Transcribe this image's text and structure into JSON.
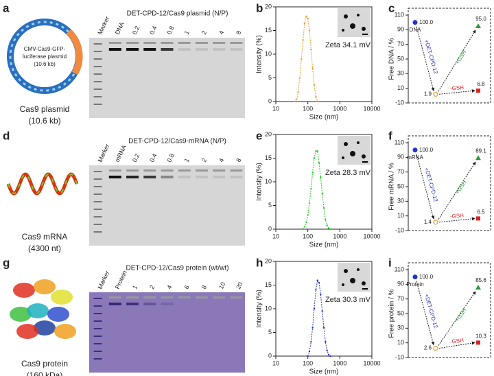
{
  "panel_labels": [
    "a",
    "b",
    "c",
    "d",
    "e",
    "f",
    "g",
    "h",
    "i"
  ],
  "schematics": [
    {
      "caption": "Cas9 plasmid",
      "detail": "(10.6 kb)",
      "inner_text": [
        "CMV-Cas9-GFP-",
        "luciferase plasmid",
        "(10.6 kb)"
      ]
    },
    {
      "caption": "Cas9 mRNA",
      "detail": "(4300 nt)"
    },
    {
      "caption": "Cas9 protein",
      "detail": "(160 kDa)"
    }
  ],
  "gels": [
    {
      "title": "DET-CPD-12/Cas9 plasmid (N/P)",
      "lanes": [
        "Marker",
        "DNA",
        "0.2",
        "0.4",
        "0.8",
        "1",
        "2",
        "4",
        "8"
      ]
    },
    {
      "title": "DET-CPD-12/Cas9-mRNA (N/P)",
      "lanes": [
        "Marker",
        "mRNA",
        "0.2",
        "0.4",
        "0.8",
        "1",
        "2",
        "4",
        "8"
      ]
    },
    {
      "title": "DET-CPD-12/Cas9 protein (wt/wt)",
      "lanes": [
        "Marker",
        "Protein",
        "1",
        "2",
        "4",
        "6",
        "8",
        "10",
        "20"
      ]
    }
  ],
  "chart_data": [
    {
      "type": "line",
      "annotation": "Zeta 34.1 mV",
      "xlabel": "Size (nm)",
      "ylabel": "Intensity (%)",
      "log_x": true,
      "xlim": [
        10,
        10000
      ],
      "xticks": [
        10,
        100,
        1000,
        10000
      ],
      "ylim": [
        0,
        20
      ],
      "yticks": [
        0,
        5,
        10,
        15,
        20
      ],
      "color": "#f39a2b",
      "x": [
        40,
        45,
        50,
        56,
        63,
        71,
        79,
        89,
        100,
        112,
        126,
        141,
        158,
        178,
        200
      ],
      "values": [
        0,
        0.5,
        2,
        5,
        9,
        13,
        16.5,
        18,
        17.5,
        15,
        11,
        7,
        3.5,
        1,
        0
      ]
    },
    {
      "type": "scatter",
      "ylabel": "Free DNA / %",
      "ylim": [
        -10,
        110
      ],
      "yticks": [
        -10,
        10,
        30,
        50,
        70,
        90,
        110
      ],
      "values": [
        100.0,
        1.9,
        95.0,
        6.8
      ],
      "value_labels": [
        "100.0",
        "1.9",
        "95.0",
        "6.8"
      ],
      "colors": [
        "#2233cc",
        "#f39a2b",
        "#2a9a3a",
        "#e02020"
      ],
      "point_label": "DNA",
      "arrow_labels": [
        "+DET-CPD-12",
        "+GSH",
        "-GSH"
      ]
    },
    {
      "type": "line",
      "annotation": "Zeta 28.3 mV",
      "xlabel": "Size (nm)",
      "ylabel": "Intensity (%)",
      "log_x": true,
      "xlim": [
        10,
        10000
      ],
      "xticks": [
        10,
        100,
        1000,
        10000
      ],
      "ylim": [
        0,
        20
      ],
      "yticks": [
        0,
        5,
        10,
        15,
        20
      ],
      "color": "#22cc22",
      "x": [
        70,
        80,
        90,
        100,
        112,
        126,
        141,
        158,
        178,
        200,
        224,
        251,
        282,
        316,
        355,
        398,
        447,
        501
      ],
      "values": [
        0,
        0.5,
        1.5,
        3,
        5.5,
        8.5,
        12,
        15,
        16.5,
        16.5,
        14,
        11,
        7.5,
        4.5,
        2,
        0.8,
        0.2,
        0
      ]
    },
    {
      "type": "scatter",
      "ylabel": "Free mRNA / %",
      "ylim": [
        -10,
        110
      ],
      "yticks": [
        -10,
        10,
        30,
        50,
        70,
        90,
        110
      ],
      "values": [
        100.0,
        1.4,
        89.1,
        6.5
      ],
      "value_labels": [
        "100.0",
        "1.4",
        "89.1",
        "6.5"
      ],
      "colors": [
        "#2233cc",
        "#f39a2b",
        "#2a9a3a",
        "#e02020"
      ],
      "point_label": "mRNA",
      "arrow_labels": [
        "+DET-CPD-12",
        "+GSH",
        "-GSH"
      ]
    },
    {
      "type": "line",
      "annotation": "Zeta 30.3 mV",
      "xlabel": "Size (nm)",
      "ylabel": "Intensity (%)",
      "log_x": true,
      "xlim": [
        10,
        10000
      ],
      "xticks": [
        10,
        100,
        1000,
        10000
      ],
      "ylim": [
        0,
        20
      ],
      "yticks": [
        0,
        5,
        10,
        15,
        20
      ],
      "color": "#2233cc",
      "x": [
        100,
        112,
        126,
        141,
        158,
        178,
        200,
        224,
        251,
        282,
        316,
        355,
        398,
        447,
        501
      ],
      "values": [
        0,
        1,
        3,
        6,
        10,
        14,
        16,
        15.5,
        13,
        9.5,
        6,
        3,
        1.2,
        0.3,
        0
      ]
    },
    {
      "type": "scatter",
      "ylabel": "Free protein / %",
      "ylim": [
        -10,
        110
      ],
      "yticks": [
        -10,
        10,
        30,
        50,
        70,
        90,
        110
      ],
      "values": [
        100.0,
        2.6,
        85.6,
        10.3
      ],
      "value_labels": [
        "100.0",
        "2.6",
        "85.6",
        "10.3"
      ],
      "colors": [
        "#2233cc",
        "#f39a2b",
        "#2a9a3a",
        "#e02020"
      ],
      "point_label": "Protein",
      "arrow_labels": [
        "+DET-CPD-12",
        "+GSH",
        "-GSH"
      ]
    }
  ]
}
